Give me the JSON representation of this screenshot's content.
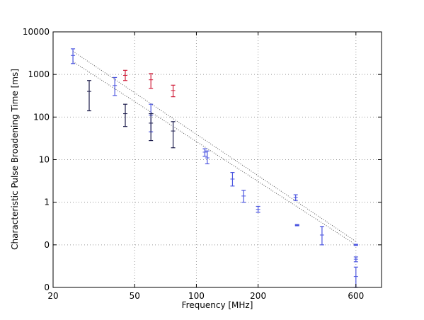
{
  "chart_data": {
    "type": "scatter",
    "title": "",
    "xlabel": "Frequency [MHz]",
    "ylabel": "Characteristic Pulse Broadening Time [ms]",
    "x_scale": "log",
    "y_scale": "log",
    "xlim": [
      20,
      800
    ],
    "ylim": [
      0.01,
      10000
    ],
    "x_ticks": [
      {
        "value": 20,
        "label": "20"
      },
      {
        "value": 50,
        "label": "50"
      },
      {
        "value": 100,
        "label": "100"
      },
      {
        "value": 200,
        "label": "200"
      },
      {
        "value": 600,
        "label": "600"
      }
    ],
    "y_ticks": [
      {
        "value": 0.01,
        "label": "0"
      },
      {
        "value": 0.1,
        "label": "0"
      },
      {
        "value": 1,
        "label": "1"
      },
      {
        "value": 10,
        "label": "10"
      },
      {
        "value": 100,
        "label": "100"
      },
      {
        "value": 1000,
        "label": "1000"
      },
      {
        "value": 10000,
        "label": "10000"
      }
    ],
    "grid": true,
    "series": [
      {
        "color": "#4b55e0",
        "points": [
          {
            "x": 25,
            "y": 2800,
            "ylo": 1800,
            "yhi": 4000
          },
          {
            "x": 40,
            "y": 550,
            "ylo": 320,
            "yhi": 850
          },
          {
            "x": 60,
            "y": 110,
            "ylo": 45,
            "yhi": 200
          },
          {
            "x": 110,
            "y": 15,
            "ylo": 12,
            "yhi": 18
          },
          {
            "x": 113,
            "y": 11,
            "ylo": 8,
            "yhi": 16
          },
          {
            "x": 150,
            "y": 3.5,
            "ylo": 2.4,
            "yhi": 5
          },
          {
            "x": 170,
            "y": 1.4,
            "ylo": 1.0,
            "yhi": 1.9
          },
          {
            "x": 200,
            "y": 0.68,
            "ylo": 0.58,
            "yhi": 0.8
          },
          {
            "x": 305,
            "y": 1.3,
            "ylo": 1.1,
            "yhi": 1.5
          },
          {
            "x": 310,
            "y": 0.29,
            "ylo": 0.28,
            "yhi": 0.3
          },
          {
            "x": 410,
            "y": 0.17,
            "ylo": 0.1,
            "yhi": 0.27
          },
          {
            "x": 600,
            "y": 0.1,
            "ylo": 0.097,
            "yhi": 0.103
          },
          {
            "x": 600,
            "y": 0.046,
            "ylo": 0.04,
            "yhi": 0.052
          },
          {
            "x": 600,
            "y": 0.018,
            "ylo": 0.01,
            "yhi": 0.03
          }
        ]
      },
      {
        "color": "#d0203c",
        "points": [
          {
            "x": 45,
            "y": 950,
            "ylo": 720,
            "yhi": 1250
          },
          {
            "x": 60,
            "y": 750,
            "ylo": 470,
            "yhi": 1050
          },
          {
            "x": 77,
            "y": 420,
            "ylo": 300,
            "yhi": 560
          }
        ]
      },
      {
        "color": "#1a1a4a",
        "points": [
          {
            "x": 30,
            "y": 400,
            "ylo": 140,
            "yhi": 720
          },
          {
            "x": 45,
            "y": 120,
            "ylo": 60,
            "yhi": 200
          },
          {
            "x": 60,
            "y": 72,
            "ylo": 28,
            "yhi": 120
          },
          {
            "x": 77,
            "y": 47,
            "ylo": 19,
            "yhi": 78
          }
        ]
      }
    ],
    "fit_lines": [
      {
        "x": [
          25,
          600
        ],
        "y": [
          3500,
          0.12
        ],
        "color": "#555555",
        "style": "dotted"
      },
      {
        "x": [
          25,
          600
        ],
        "y": [
          2000,
          0.1
        ],
        "color": "#555555",
        "style": "dotted"
      }
    ]
  }
}
